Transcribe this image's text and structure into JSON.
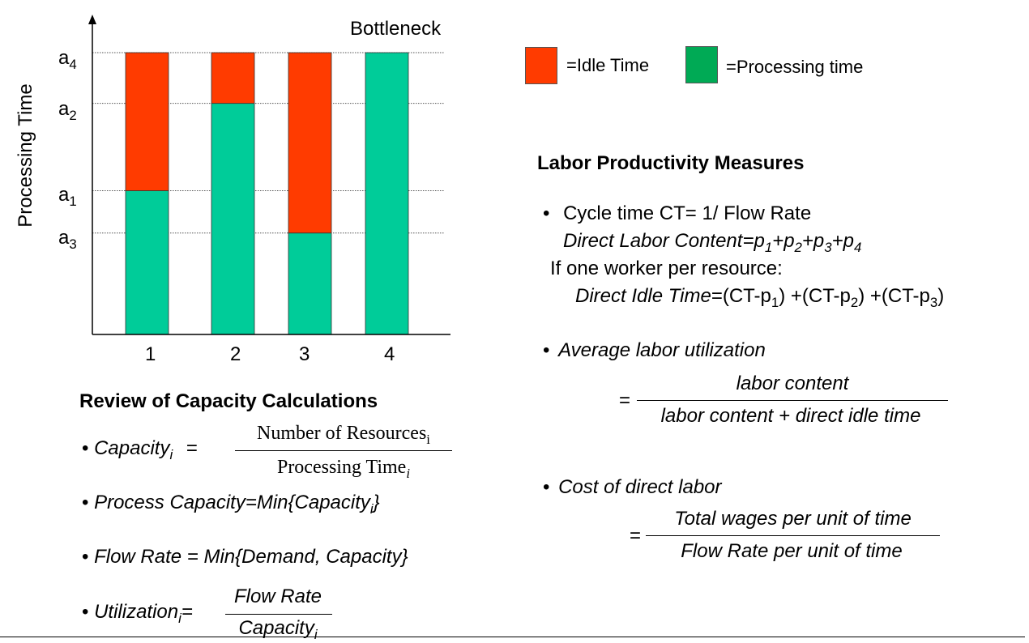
{
  "colors": {
    "idle": "#ff3b00",
    "processing": "#00cc99",
    "legend_processing": "#00aa55",
    "grid": "#555555"
  },
  "chart": {
    "bottleneck_label": "Bottleneck",
    "y_axis_label": "Processing Time",
    "y_ticks": [
      {
        "label": "a",
        "sub": "4"
      },
      {
        "label": "a",
        "sub": "2"
      },
      {
        "label": "a",
        "sub": "1"
      },
      {
        "label": "a",
        "sub": "3"
      }
    ]
  },
  "chart_data": {
    "type": "bar",
    "stacked": true,
    "categories": [
      "1",
      "2",
      "3",
      "4"
    ],
    "series": [
      {
        "name": "=Processing time",
        "values": [
          0.51,
          0.82,
          0.36,
          1.0
        ]
      },
      {
        "name": "=Idle Time",
        "values": [
          0.49,
          0.18,
          0.64,
          0.0
        ]
      }
    ],
    "title": "",
    "xlabel": "",
    "ylabel": "Processing Time",
    "ylim": [
      0,
      1
    ],
    "grid": false,
    "legend": "top-right"
  },
  "legend": {
    "idle_label": "=Idle Time",
    "processing_label": "=Processing time"
  },
  "labor": {
    "title": "Labor Productivity Measures",
    "bullet": "•",
    "cycle_time": "Cycle time CT= 1/ Flow Rate",
    "dlc_prefix": "Direct Labor Content",
    "dlc_formula": "=p1+p2+p3+p4",
    "one_worker": "If one worker per resource:",
    "dit_prefix": "Direct Idle Time",
    "dit_formula": "=(CT-p1) +(CT-p2) +(CT-p3)",
    "avg_util": "Average labor utilization",
    "avg_eq": "=",
    "avg_num": "labor content",
    "avg_den": "labor content + direct idle time",
    "cost": "Cost of direct labor",
    "cost_eq": "=",
    "cost_num": "Total wages per unit of time",
    "cost_den": "Flow Rate per unit of time"
  },
  "review": {
    "title": "Review of Capacity Calculations",
    "bullet": "•",
    "capacity_label": "Capacity",
    "capacity_sub": "i",
    "capacity_eq": "=",
    "capacity_num": "Number of Resources",
    "capacity_num_sub": "i",
    "capacity_den": "Processing Time",
    "capacity_den_sub": "i",
    "process_capacity_prefix": "Process Capacity=Min{Capacity",
    "process_capacity_sub": "i",
    "process_capacity_suffix": "}",
    "flow_rate": "Flow Rate = Min{Demand, Capacity}",
    "utilization_label": "Utilization",
    "utilization_sub": "i",
    "utilization_eq": "=",
    "utilization_num": "Flow Rate",
    "utilization_den": "Capacity",
    "utilization_den_sub": "i"
  }
}
